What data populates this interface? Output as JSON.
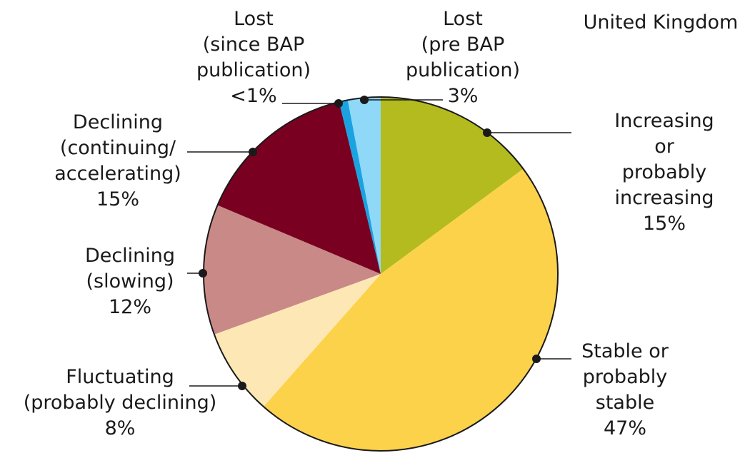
{
  "chart_data": {
    "type": "pie",
    "title": "United Kingdom",
    "categories": [
      "Increasing or\nprobably increasing",
      "Stable or\nprobably stable",
      "Fluctuating\n(probably declining)",
      "Declining\n(slowing)",
      "Declining\n(continuing/\naccelerating)",
      "Lost\n(since BAP\npublication)",
      "Lost\n(pre BAP\npublication)"
    ],
    "values": [
      15,
      47,
      8,
      12,
      15,
      0.8,
      3
    ],
    "value_labels": [
      "15%",
      "47%",
      "8%",
      "12%",
      "15%",
      "<1%",
      "3%"
    ],
    "colors": [
      "#b3bb1e",
      "#fdd24b",
      "#fde8b5",
      "#c98a87",
      "#7a0021",
      "#1aa3e0",
      "#8fd8f8"
    ]
  }
}
